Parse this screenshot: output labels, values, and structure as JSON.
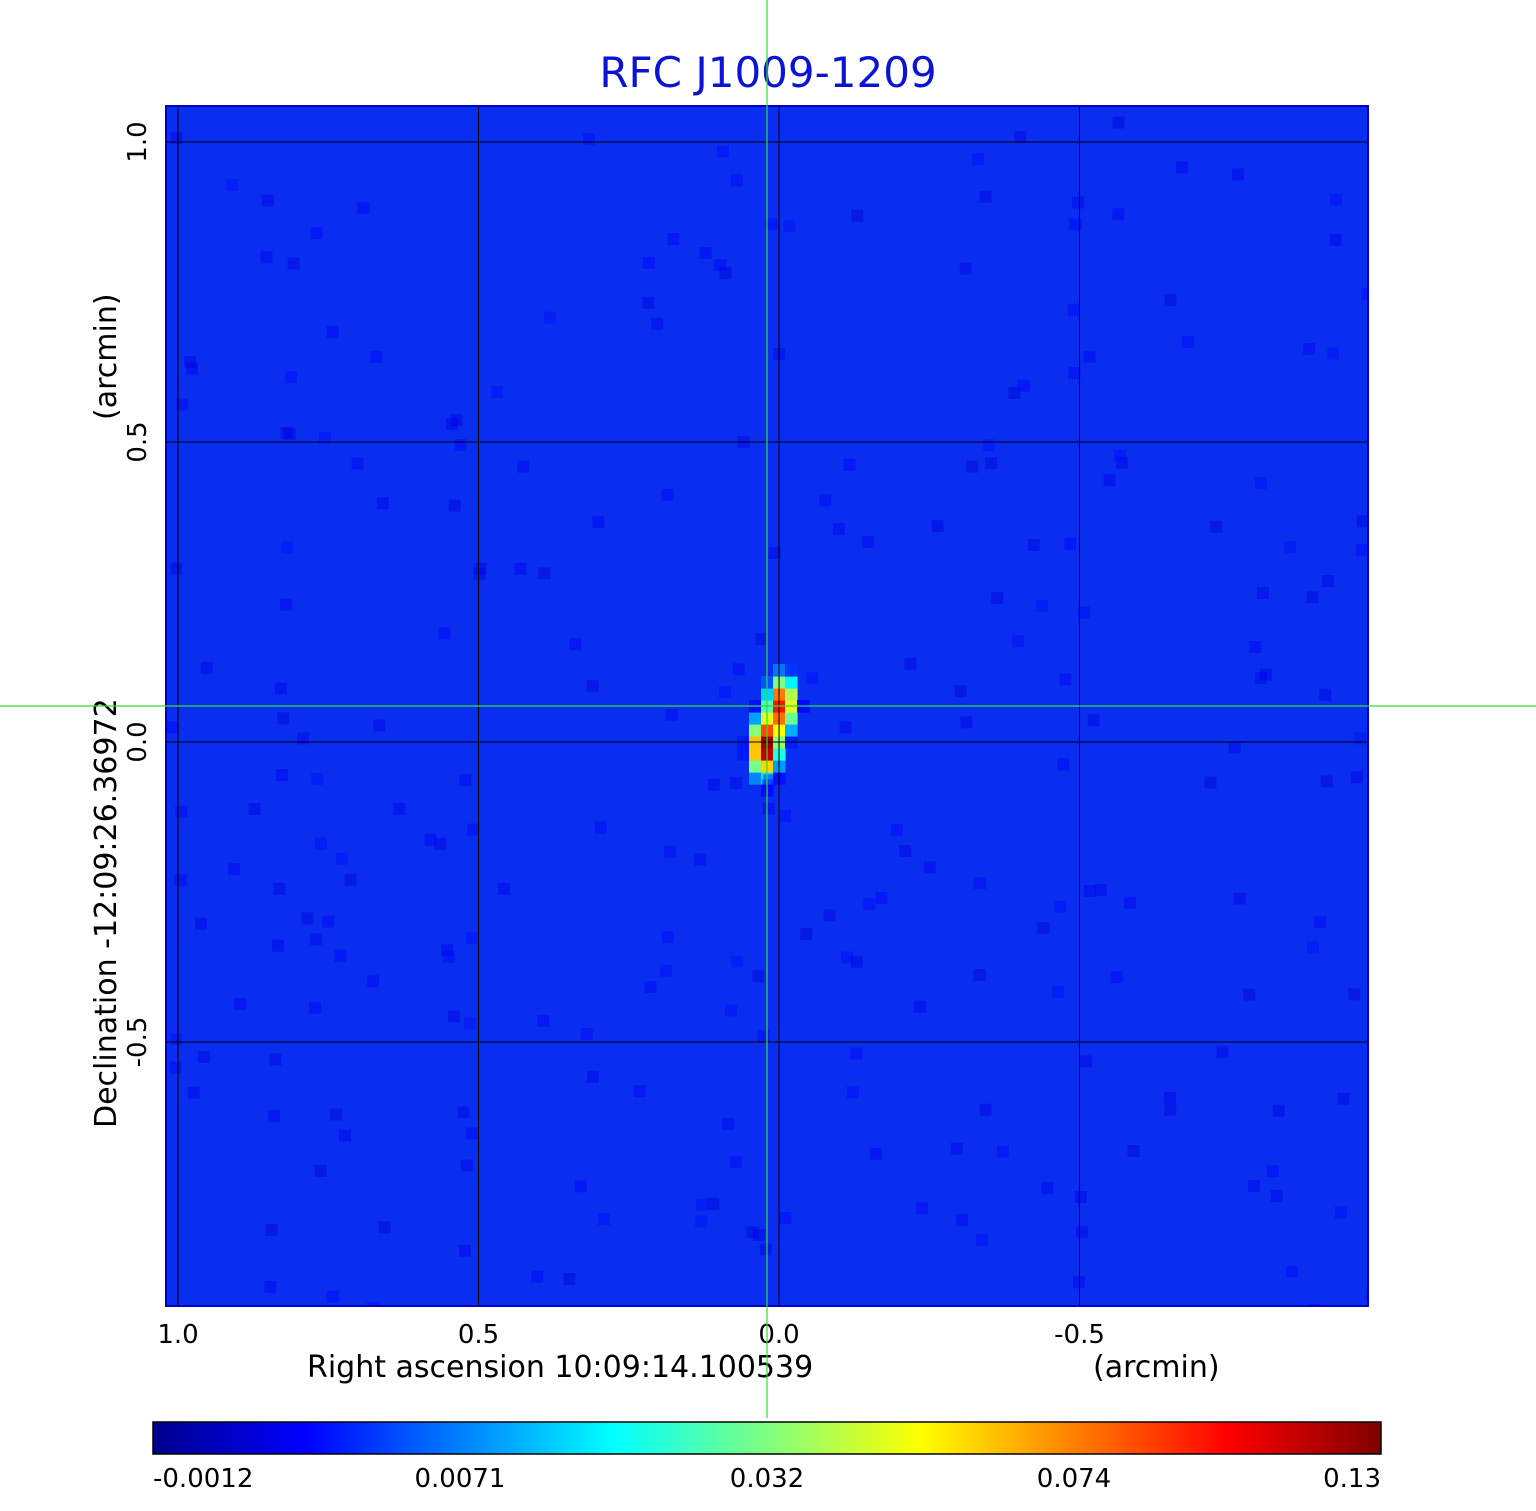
{
  "chart_data": {
    "type": "heatmap",
    "title": "RFC J1009-1209",
    "xlabel": "Right ascension  10:09:14.100539",
    "xunit": "(arcmin)",
    "ylabel": "Declination  -12:09:26.36972",
    "yunit": "(arcmin)",
    "xlim": [
      1.02,
      -0.98
    ],
    "ylim": [
      -0.94,
      1.06
    ],
    "x_ticks": [
      1.0,
      0.5,
      0.0,
      -0.5
    ],
    "x_tick_labels": [
      "1.0",
      "0.5",
      "0.0",
      "-0.5"
    ],
    "y_ticks": [
      -0.5,
      0.0,
      0.5,
      1.0
    ],
    "y_tick_labels": [
      "-0.5",
      "0.0",
      "0.5",
      "1.0"
    ],
    "grid": true,
    "crosshair": {
      "x": 0.02,
      "y": 0.06,
      "color": "#33dd33"
    },
    "colormap": "jet",
    "colorbar": {
      "orientation": "horizontal",
      "tick_labels": [
        "-0.0012",
        "0.0071",
        "0.032",
        "0.074",
        "0.13"
      ],
      "range": [
        -0.0012,
        0.13
      ]
    },
    "sources": [
      {
        "x": 0.025,
        "y": -0.01,
        "peak": 0.13
      },
      {
        "x": -0.005,
        "y": 0.065,
        "peak": 0.11
      }
    ],
    "background_level": -0.0005
  },
  "colors": {
    "title": "#0a14d2",
    "grid": "#000000",
    "background_map": "#0a2ef0"
  }
}
